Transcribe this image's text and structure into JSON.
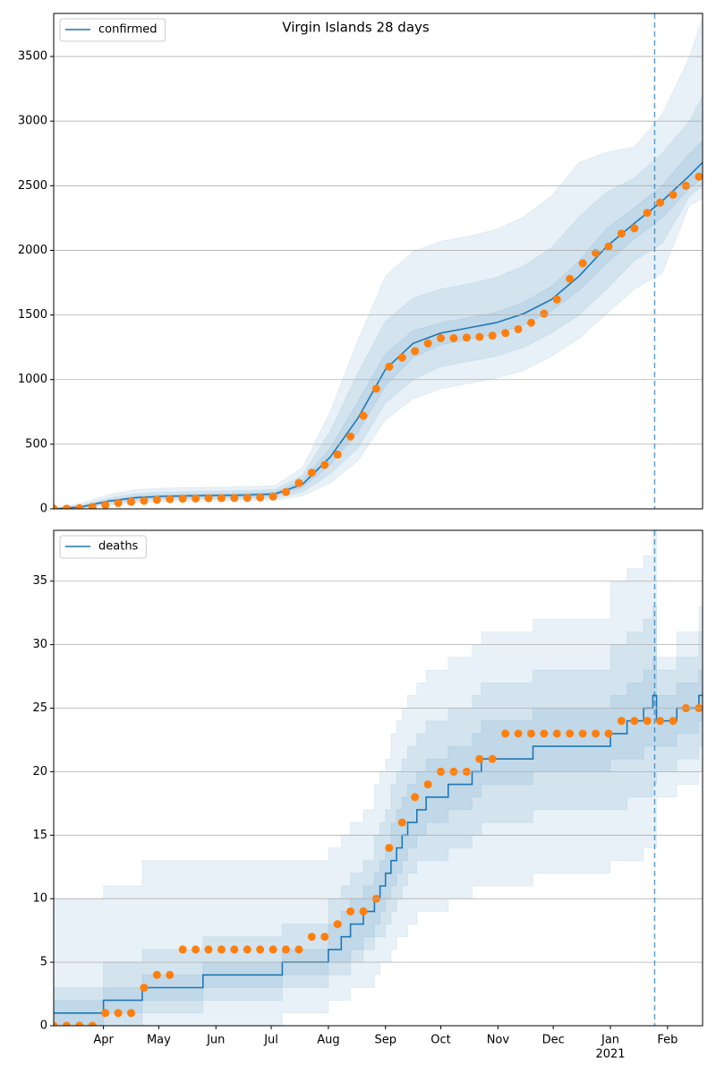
{
  "chart_data": [
    {
      "type": "line",
      "title": "Virgin Islands 28 days",
      "legend": "upper left",
      "grid": true,
      "xlim": [
        0,
        352
      ],
      "ylim": [
        0,
        3833
      ],
      "yticks": [
        0,
        500,
        1000,
        1500,
        2000,
        2500,
        3000,
        3500
      ],
      "vline": 326,
      "series": [
        {
          "name": "confirmed",
          "color": "#1f77b4",
          "x": [
            0,
            15,
            30,
            45,
            60,
            75,
            90,
            105,
            120,
            135,
            150,
            165,
            180,
            195,
            210,
            225,
            240,
            255,
            270,
            285,
            300,
            315,
            330,
            345,
            352
          ],
          "values": [
            0,
            15,
            60,
            87,
            97,
            101,
            104,
            107,
            115,
            190,
            400,
            700,
            1080,
            1280,
            1360,
            1400,
            1440,
            1510,
            1620,
            1800,
            2030,
            2210,
            2380,
            2580,
            2680
          ]
        }
      ],
      "observed": {
        "color": "#ff7f0e",
        "x": [
          0,
          7,
          14,
          21,
          28,
          35,
          42,
          49,
          56,
          63,
          70,
          77,
          84,
          91,
          98,
          105,
          112,
          119,
          126,
          133,
          140,
          147,
          154,
          161,
          168,
          175,
          182,
          189,
          196,
          203,
          210,
          217,
          224,
          231,
          238,
          245,
          252,
          259,
          266,
          273,
          280,
          287,
          294,
          301,
          308,
          315,
          322,
          329,
          336,
          343,
          350
        ],
        "values": [
          2,
          2,
          5,
          15,
          30,
          45,
          55,
          62,
          70,
          75,
          78,
          80,
          82,
          83,
          84,
          85,
          88,
          95,
          130,
          200,
          280,
          340,
          420,
          560,
          720,
          930,
          1100,
          1170,
          1220,
          1280,
          1320,
          1320,
          1325,
          1330,
          1340,
          1360,
          1390,
          1440,
          1510,
          1620,
          1780,
          1900,
          1980,
          2030,
          2130,
          2170,
          2290,
          2370,
          2430,
          2500,
          2570
        ]
      },
      "band_color": "#1f77b4",
      "bands": [
        {
          "x": [
            0,
            15,
            30,
            45,
            60,
            75,
            90,
            105,
            120,
            135,
            150,
            165,
            180,
            195,
            210,
            225,
            240,
            255,
            270,
            285,
            300,
            315,
            330,
            345,
            352
          ],
          "upper": [
            0,
            45,
            110,
            150,
            160,
            165,
            168,
            172,
            180,
            320,
            750,
            1300,
            1800,
            1990,
            2070,
            2110,
            2160,
            2260,
            2420,
            2680,
            2760,
            2800,
            3050,
            3500,
            3800
          ],
          "lower": [
            0,
            2,
            25,
            45,
            55,
            58,
            60,
            62,
            68,
            100,
            200,
            370,
            690,
            850,
            930,
            970,
            1010,
            1070,
            1180,
            1320,
            1510,
            1700,
            1820,
            2350,
            2400
          ]
        },
        {
          "x": [
            0,
            15,
            30,
            45,
            60,
            75,
            90,
            105,
            120,
            135,
            150,
            165,
            180,
            195,
            210,
            225,
            240,
            255,
            270,
            285,
            300,
            315,
            330,
            345,
            352
          ],
          "upper": [
            0,
            30,
            85,
            120,
            130,
            135,
            138,
            142,
            150,
            260,
            600,
            1050,
            1450,
            1630,
            1700,
            1740,
            1790,
            1880,
            2020,
            2260,
            2450,
            2560,
            2750,
            3000,
            3200
          ],
          "lower": [
            0,
            5,
            38,
            62,
            72,
            75,
            77,
            79,
            85,
            130,
            270,
            470,
            820,
            1000,
            1100,
            1140,
            1180,
            1250,
            1360,
            1500,
            1700,
            1920,
            2050,
            2420,
            2500
          ]
        },
        {
          "x": [
            0,
            15,
            30,
            45,
            60,
            75,
            90,
            105,
            120,
            135,
            150,
            165,
            180,
            195,
            210,
            225,
            240,
            255,
            270,
            285,
            300,
            315,
            330,
            345,
            352
          ],
          "upper": [
            0,
            20,
            70,
            100,
            110,
            115,
            118,
            122,
            130,
            220,
            470,
            830,
            1200,
            1380,
            1440,
            1480,
            1520,
            1600,
            1720,
            1920,
            2170,
            2330,
            2500,
            2750,
            2850
          ],
          "lower": [
            0,
            10,
            50,
            75,
            85,
            88,
            90,
            92,
            100,
            165,
            340,
            590,
            950,
            1170,
            1270,
            1310,
            1350,
            1420,
            1530,
            1690,
            1900,
            2090,
            2250,
            2480,
            2560
          ]
        }
      ]
    },
    {
      "type": "line",
      "legend": "upper left",
      "grid": true,
      "step": true,
      "xlim": [
        0,
        352
      ],
      "ylim": [
        0,
        39
      ],
      "yticks": [
        0,
        5,
        10,
        15,
        20,
        25,
        30,
        35
      ],
      "vline": 326,
      "xticks": [
        {
          "value": 27,
          "label": "Apr"
        },
        {
          "value": 57,
          "label": "May"
        },
        {
          "value": 88,
          "label": "Jun"
        },
        {
          "value": 118,
          "label": "Jul"
        },
        {
          "value": 149,
          "label": "Aug"
        },
        {
          "value": 180,
          "label": "Sep"
        },
        {
          "value": 210,
          "label": "Oct"
        },
        {
          "value": 241,
          "label": "Nov"
        },
        {
          "value": 271,
          "label": "Dec"
        },
        {
          "value": 302,
          "label": "Jan",
          "sublabel": "2021"
        },
        {
          "value": 333,
          "label": "Feb"
        }
      ],
      "series": [
        {
          "name": "deaths",
          "color": "#1f77b4",
          "x": [
            0,
            27,
            48,
            81,
            124,
            149,
            156,
            161,
            168,
            174,
            177,
            180,
            183,
            186,
            189,
            192,
            197,
            202,
            214,
            227,
            232,
            260,
            302,
            311,
            320,
            325,
            327,
            338,
            350,
            352
          ],
          "values": [
            1,
            2,
            3,
            4,
            5,
            6,
            7,
            8,
            9,
            10,
            11,
            12,
            13,
            14,
            15,
            16,
            17,
            18,
            19,
            20,
            21,
            22,
            23,
            24,
            25,
            26,
            24,
            25,
            26,
            26
          ]
        }
      ],
      "observed": {
        "color": "#ff7f0e",
        "x": [
          0,
          7,
          14,
          21,
          28,
          35,
          42,
          49,
          56,
          63,
          70,
          77,
          84,
          91,
          98,
          105,
          112,
          119,
          126,
          133,
          140,
          147,
          154,
          161,
          168,
          175,
          182,
          189,
          196,
          203,
          210,
          217,
          224,
          231,
          238,
          245,
          252,
          259,
          266,
          273,
          280,
          287,
          294,
          301,
          308,
          315,
          322,
          329,
          336,
          343,
          350
        ],
        "values": [
          0,
          0,
          0,
          0,
          1,
          1,
          1,
          3,
          4,
          4,
          6,
          6,
          6,
          6,
          6,
          6,
          6,
          6,
          6,
          6,
          7,
          7,
          8,
          9,
          9,
          10,
          14,
          16,
          18,
          19,
          20,
          20,
          20,
          21,
          21,
          23,
          23,
          23,
          23,
          23,
          23,
          23,
          23,
          23,
          24,
          24,
          24,
          24,
          24,
          25,
          25
        ]
      },
      "band_color": "#1f77b4",
      "bands": [
        {
          "x": [
            0,
            27,
            48,
            81,
            124,
            149,
            156,
            161,
            168,
            174,
            177,
            180,
            183,
            186,
            189,
            192,
            197,
            202,
            214,
            227,
            232,
            260,
            302,
            311,
            320,
            325,
            327,
            338,
            350,
            352
          ],
          "upper": [
            10,
            11,
            13,
            13,
            13,
            14,
            15,
            16,
            17,
            19,
            20,
            21,
            23,
            24,
            25,
            26,
            27,
            28,
            29,
            30,
            31,
            32,
            35,
            36,
            37,
            39,
            29,
            31,
            33,
            33
          ],
          "lower": [
            0,
            0,
            0,
            0,
            1,
            2,
            2,
            3,
            3,
            4,
            5,
            5,
            6,
            7,
            7,
            8,
            9,
            9,
            10,
            11,
            11,
            12,
            13,
            13,
            14,
            14,
            18,
            19,
            20,
            20
          ]
        },
        {
          "x": [
            0,
            27,
            48,
            81,
            124,
            149,
            156,
            161,
            168,
            174,
            177,
            180,
            183,
            186,
            189,
            192,
            197,
            202,
            214,
            227,
            232,
            260,
            302,
            311,
            320,
            325,
            327,
            338,
            350,
            352
          ],
          "upper": [
            3,
            5,
            6,
            7,
            8,
            10,
            11,
            12,
            13,
            15,
            16,
            17,
            19,
            20,
            21,
            22,
            23,
            24,
            25,
            26,
            27,
            28,
            30,
            31,
            32,
            33,
            28,
            29,
            31,
            31
          ],
          "lower": [
            0,
            0,
            1,
            2,
            3,
            4,
            4,
            5,
            6,
            7,
            7,
            8,
            9,
            10,
            11,
            12,
            13,
            13,
            14,
            15,
            16,
            17,
            17,
            18,
            18,
            19,
            20,
            21,
            22,
            22
          ]
        },
        {
          "x": [
            0,
            27,
            48,
            81,
            124,
            149,
            156,
            161,
            168,
            174,
            177,
            180,
            183,
            186,
            189,
            192,
            197,
            202,
            214,
            227,
            232,
            260,
            302,
            311,
            320,
            325,
            327,
            338,
            350,
            352
          ],
          "upper": [
            2,
            3,
            4,
            5,
            6,
            8,
            9,
            10,
            11,
            12,
            13,
            14,
            16,
            17,
            18,
            19,
            20,
            21,
            22,
            23,
            24,
            25,
            26,
            27,
            28,
            29,
            26,
            27,
            28,
            29
          ],
          "lower": [
            0,
            1,
            2,
            3,
            4,
            5,
            5,
            6,
            7,
            8,
            9,
            10,
            11,
            12,
            13,
            14,
            15,
            16,
            17,
            18,
            19,
            20,
            21,
            21,
            22,
            22,
            22,
            23,
            24,
            24
          ]
        }
      ]
    }
  ]
}
